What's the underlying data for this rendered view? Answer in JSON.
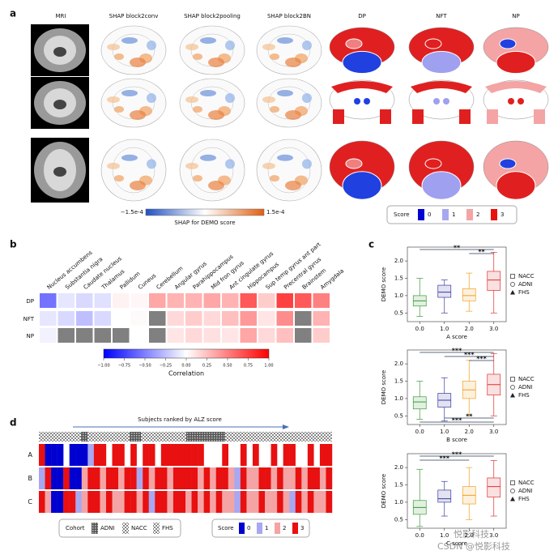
{
  "panel_labels": [
    "a",
    "b",
    "c",
    "d"
  ],
  "panel_a": {
    "columns": [
      "MRI",
      "SHAP block2conv",
      "SHAP block2pooling",
      "SHAP block2BN",
      "DP",
      "NFT",
      "NP"
    ],
    "colorbar": {
      "min_label": "−1.5e-4",
      "max_label": "1.5e-4",
      "title": "SHAP for DEMO score"
    },
    "score_legend": {
      "title": "Score",
      "labels": [
        "0",
        "1",
        "2",
        "3"
      ],
      "colors": [
        "#0000d0",
        "#a8a8f0",
        "#f4a4a4",
        "#e81010"
      ]
    }
  },
  "chart_data": [
    {
      "type": "heatmap",
      "categories": [
        "Nucleus accumbens",
        "Substantia nigra",
        "Caudate nucleus",
        "Thalamus",
        "Pallidum",
        "Cuneus",
        "Cerebellum",
        "Angular gyrus",
        "Parahippocampus",
        "Mid fron gyrus",
        "Ant cingulate gyrus",
        "Hippocampus",
        "Sup temp gyrus ant part",
        "Precentral gyrus",
        "Brainstem",
        "Amygdala"
      ],
      "rows": [
        "DP",
        "NFT",
        "NP"
      ],
      "values": [
        [
          -0.55,
          -0.1,
          -0.15,
          -0.12,
          0.05,
          0.03,
          0.35,
          0.3,
          0.3,
          0.35,
          0.3,
          0.65,
          0.2,
          0.75,
          0.65,
          0.5
        ],
        [
          -0.1,
          -0.15,
          -0.25,
          -0.15,
          0.0,
          0.02,
          null,
          0.15,
          0.2,
          0.15,
          0.25,
          0.4,
          0.1,
          0.45,
          null,
          0.3
        ],
        [
          -0.05,
          null,
          null,
          null,
          null,
          0.0,
          null,
          0.1,
          0.15,
          0.12,
          0.1,
          0.35,
          0.15,
          0.25,
          null,
          0.2
        ]
      ],
      "colormap": [
        "#0000ff",
        "#ffffff",
        "#ff0000"
      ],
      "missing_color": "#808080",
      "colorbar": {
        "label": "Correlation",
        "lim": [
          -1,
          1
        ],
        "ticks": [
          {
            "value": -1,
            "label": "−1.00"
          },
          {
            "value": -0.75,
            "label": "−0.75"
          },
          {
            "value": -0.5,
            "label": "−0.50"
          },
          {
            "value": -0.25,
            "label": "−0.25"
          },
          {
            "value": 0,
            "label": "0.00"
          },
          {
            "value": 0.25,
            "label": "0.25"
          },
          {
            "value": 0.5,
            "label": "0.50"
          },
          {
            "value": 0.75,
            "label": "0.75"
          },
          {
            "value": 1,
            "label": "1.00"
          }
        ]
      }
    },
    {
      "type": "box",
      "xlabel": "A score",
      "ylabel": "DEMO score",
      "xlim": [
        -0.5,
        3.5
      ],
      "xticks": [
        {
          "value": 0,
          "label": "0.0"
        },
        {
          "value": 1,
          "label": "1.0"
        },
        {
          "value": 2,
          "label": "2.0"
        },
        {
          "value": 3,
          "label": "3.0"
        }
      ],
      "ylim": [
        0.25,
        2.4
      ],
      "yticks": [
        0.5,
        {
          "value": 1,
          "label": "1.0"
        },
        1.5,
        {
          "value": 2,
          "label": "2.0"
        }
      ],
      "boxes": [
        {
          "color": "#3a9a3a",
          "whislo": 0.4,
          "q1": 0.7,
          "median": 0.85,
          "q3": 1.0,
          "whishi": 1.5
        },
        {
          "color": "#3a3aa0",
          "whislo": 0.5,
          "q1": 0.95,
          "median": 1.1,
          "q3": 1.3,
          "whishi": 1.45
        },
        {
          "color": "#f0a020",
          "whislo": 0.55,
          "q1": 0.85,
          "median": 1.0,
          "q3": 1.2,
          "whishi": 1.65
        },
        {
          "color": "#e03030",
          "whislo": 0.5,
          "q1": 1.15,
          "median": 1.45,
          "q3": 1.7,
          "whishi": 2.25
        }
      ],
      "legend": {
        "labels": [
          "NACC",
          "ADNI",
          "FHS"
        ],
        "corner": "right"
      },
      "significance": [
        {
          "from": 0,
          "to": 3,
          "label": "**",
          "side": "top"
        },
        {
          "from": 2,
          "to": 3,
          "label": "**",
          "side": "top"
        }
      ]
    },
    {
      "type": "box",
      "xlabel": "B score",
      "ylabel": "DEMO score",
      "xlim": [
        -0.5,
        3.5
      ],
      "xticks": [
        {
          "value": 0,
          "label": "0.0"
        },
        {
          "value": 1,
          "label": "1.0"
        },
        {
          "value": 2,
          "label": "2.0"
        },
        {
          "value": 3,
          "label": "3.0"
        }
      ],
      "ylim": [
        0.25,
        2.4
      ],
      "yticks": [
        0.5,
        {
          "value": 1,
          "label": "1.0"
        },
        1.5,
        {
          "value": 2,
          "label": "2.0"
        }
      ],
      "boxes": [
        {
          "color": "#3a9a3a",
          "whislo": 0.4,
          "q1": 0.7,
          "median": 0.9,
          "q3": 1.05,
          "whishi": 1.5
        },
        {
          "color": "#3a3aa0",
          "whislo": 0.35,
          "q1": 0.75,
          "median": 0.95,
          "q3": 1.15,
          "whishi": 1.6
        },
        {
          "color": "#f0a020",
          "whislo": 0.5,
          "q1": 1.0,
          "median": 1.25,
          "q3": 1.5,
          "whishi": 2.1
        },
        {
          "color": "#e03030",
          "whislo": 0.5,
          "q1": 1.1,
          "median": 1.4,
          "q3": 1.7,
          "whishi": 2.3
        }
      ],
      "legend": {
        "labels": [
          "NACC",
          "ADNI",
          "FHS"
        ],
        "corner": "right"
      },
      "significance": [
        {
          "from": 0,
          "to": 3,
          "label": "***",
          "side": "top"
        },
        {
          "from": 1,
          "to": 3,
          "label": "***",
          "side": "top"
        },
        {
          "from": 2,
          "to": 3,
          "label": "***",
          "side": "top"
        },
        {
          "from": 0,
          "to": 3,
          "label": "***",
          "side": "bottom"
        },
        {
          "from": 1,
          "to": 3,
          "label": "**",
          "side": "bottom"
        }
      ]
    },
    {
      "type": "box",
      "xlabel": "C score",
      "ylabel": "DEMO score",
      "xlim": [
        -0.5,
        3.5
      ],
      "xticks": [
        {
          "value": 0,
          "label": "0.0"
        },
        {
          "value": 1,
          "label": "1.0"
        },
        {
          "value": 2,
          "label": "2.0"
        },
        {
          "value": 3,
          "label": "3.0"
        }
      ],
      "ylim": [
        0.25,
        2.4
      ],
      "yticks": [
        0.5,
        {
          "value": 1,
          "label": "1.0"
        },
        1.5,
        {
          "value": 2,
          "label": "2.0"
        }
      ],
      "boxes": [
        {
          "color": "#3a9a3a",
          "whislo": 0.3,
          "q1": 0.65,
          "median": 0.85,
          "q3": 1.05,
          "whishi": 1.95
        },
        {
          "color": "#3a3aa0",
          "whislo": 0.6,
          "q1": 1.0,
          "median": 1.1,
          "q3": 1.35,
          "whishi": 1.6
        },
        {
          "color": "#f0a020",
          "whislo": 0.5,
          "q1": 0.95,
          "median": 1.2,
          "q3": 1.45,
          "whishi": 2.0
        },
        {
          "color": "#e03030",
          "whislo": 0.6,
          "q1": 1.15,
          "median": 1.45,
          "q3": 1.7,
          "whishi": 2.2
        }
      ],
      "legend": {
        "labels": [
          "NACC",
          "ADNI",
          "FHS"
        ],
        "corner": "right"
      },
      "significance": [
        {
          "from": 0,
          "to": 3,
          "label": "***",
          "side": "top"
        },
        {
          "from": 0,
          "to": 2,
          "label": "***",
          "side": "top"
        }
      ]
    },
    {
      "type": "stripes",
      "title": "Subjects ranked by ALZ score",
      "rows": [
        "A",
        "B",
        "C"
      ],
      "values": [
        [
          3,
          0,
          0,
          0,
          null,
          0,
          0,
          0,
          1,
          3,
          3,
          null,
          3,
          3,
          null,
          3,
          null,
          3,
          3,
          null,
          3,
          3,
          3,
          3,
          3,
          3,
          3,
          null,
          null,
          null,
          3,
          null,
          null,
          3,
          null,
          3,
          null,
          null,
          3,
          null,
          3,
          3,
          null,
          null,
          3,
          null,
          3,
          3
        ],
        [
          1,
          3,
          0,
          0,
          3,
          0,
          0,
          2,
          3,
          3,
          2,
          3,
          3,
          2,
          3,
          3,
          1,
          3,
          2,
          3,
          3,
          2,
          3,
          3,
          3,
          3,
          2,
          3,
          2,
          3,
          3,
          2,
          1,
          3,
          2,
          2,
          3,
          3,
          2,
          3,
          2,
          2,
          3,
          2,
          3,
          3,
          2,
          3
        ],
        [
          3,
          2,
          0,
          0,
          3,
          3,
          1,
          2,
          3,
          3,
          2,
          3,
          2,
          2,
          3,
          3,
          2,
          3,
          1,
          3,
          3,
          2,
          3,
          3,
          2,
          3,
          2,
          3,
          2,
          3,
          2,
          2,
          1,
          3,
          2,
          2,
          3,
          2,
          2,
          3,
          2,
          1,
          3,
          2,
          3,
          2,
          2,
          3
        ]
      ],
      "colors": [
        "#0000d0",
        "#a8a8f0",
        "#f4a4a4",
        "#e81010"
      ],
      "cohort_legend": {
        "title": "Cohort",
        "labels": [
          "ADNI",
          "NACC",
          "FHS"
        ]
      },
      "score_legend": {
        "title": "Score",
        "labels": [
          "0",
          "1",
          "2",
          "3"
        ]
      }
    }
  ],
  "watermark": {
    "logo": "悦影科技",
    "credit": "CSDN @悦影科技"
  }
}
